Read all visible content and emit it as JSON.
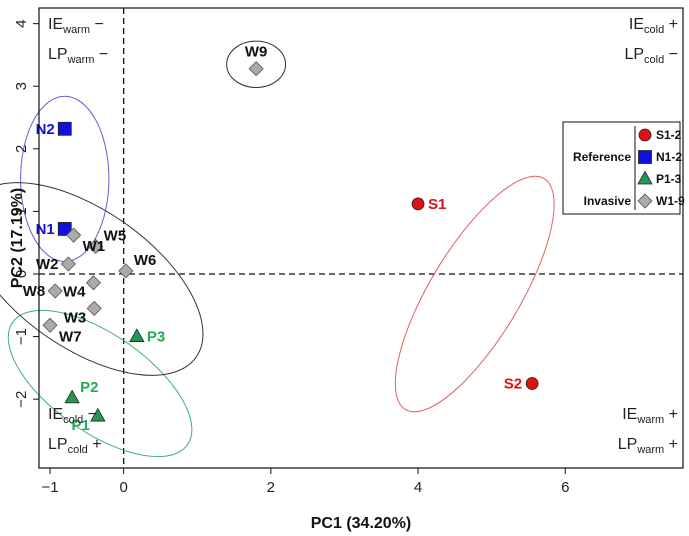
{
  "chart_data": {
    "type": "scatter",
    "xlabel": "PC1 (34.20%)",
    "ylabel": "PC2 (17.19%)",
    "xlim": [
      -1.15,
      7.6
    ],
    "ylim": [
      -3.1,
      4.25
    ],
    "x_ticks": [
      -1,
      0,
      2,
      4,
      6
    ],
    "y_ticks": [
      -2,
      -1,
      0,
      1,
      2,
      3,
      4
    ],
    "x_tick_labels": [
      "−1",
      "0",
      "2",
      "4",
      "6"
    ],
    "y_tick_labels": [
      "−2",
      "−1",
      "0",
      "1",
      "2",
      "3",
      "4"
    ],
    "reference_lines": {
      "x": 0,
      "y": 0,
      "style": "dashed"
    },
    "points": [
      {
        "label": "S1",
        "x": 4.0,
        "y": 1.12,
        "group": "S",
        "label_pos": "right"
      },
      {
        "label": "S2",
        "x": 5.55,
        "y": -1.75,
        "group": "S",
        "label_pos": "left"
      },
      {
        "label": "N1",
        "x": -0.8,
        "y": 0.72,
        "group": "N",
        "label_pos": "left"
      },
      {
        "label": "N2",
        "x": -0.8,
        "y": 2.32,
        "group": "N",
        "label_pos": "left"
      },
      {
        "label": "P1",
        "x": -0.35,
        "y": -2.27,
        "group": "P",
        "label_pos": "left-below"
      },
      {
        "label": "P2",
        "x": -0.7,
        "y": -1.98,
        "group": "P",
        "label_pos": "right-above"
      },
      {
        "label": "P3",
        "x": 0.18,
        "y": -1.0,
        "group": "P",
        "label_pos": "right"
      },
      {
        "label": "W1",
        "x": -0.68,
        "y": 0.62,
        "group": "W",
        "label_pos": "right-below"
      },
      {
        "label": "W2",
        "x": -0.75,
        "y": 0.16,
        "group": "W",
        "label_pos": "left"
      },
      {
        "label": "W3",
        "x": -0.4,
        "y": -0.55,
        "group": "W",
        "label_pos": "left-below"
      },
      {
        "label": "W4",
        "x": -0.41,
        "y": -0.14,
        "group": "W",
        "label_pos": "left-below"
      },
      {
        "label": "W5",
        "x": -0.38,
        "y": 0.44,
        "group": "W",
        "label_pos": "right-above"
      },
      {
        "label": "W6",
        "x": 0.03,
        "y": 0.05,
        "group": "W",
        "label_pos": "right-above"
      },
      {
        "label": "W7",
        "x": -1.0,
        "y": -0.82,
        "group": "W",
        "label_pos": "right-below"
      },
      {
        "label": "W8",
        "x": -0.93,
        "y": -0.27,
        "group": "W",
        "label_pos": "left"
      },
      {
        "label": "W9",
        "x": 1.8,
        "y": 3.28,
        "group": "W",
        "label_pos": "above"
      }
    ],
    "groups": {
      "S": {
        "shape": "circle",
        "color": "#dd1111",
        "label_color": "#dd1111"
      },
      "N": {
        "shape": "square",
        "color": "#1111dd",
        "label_color": "#1111dd"
      },
      "P": {
        "shape": "triangle",
        "color": "#229955",
        "label_color": "#22aa55"
      },
      "W": {
        "shape": "diamond",
        "color": "#aaaaaa",
        "label_color": "#111111"
      }
    },
    "ellipses": [
      {
        "group": "S",
        "cx": 4.77,
        "cy": -0.32,
        "rx": 1.83,
        "ry": 0.72,
        "angle_deg": -59,
        "color": "#e06060"
      },
      {
        "group": "N",
        "cx": -0.8,
        "cy": 1.52,
        "rx": 0.6,
        "ry": 1.32,
        "angle_deg": 0,
        "color": "#6060d8"
      },
      {
        "group": "P",
        "cx": -0.32,
        "cy": -1.75,
        "rx": 1.45,
        "ry": 0.78,
        "angle_deg": 35,
        "color": "#40b070"
      },
      {
        "group": "W",
        "cx": -0.53,
        "cy": -0.08,
        "rx": 1.85,
        "ry": 1.1,
        "angle_deg": 35,
        "color": "#333333"
      },
      {
        "group": "W9",
        "cx": 1.8,
        "cy": 3.35,
        "rx": 0.4,
        "ry": 0.37,
        "angle_deg": 0,
        "color": "#333333"
      }
    ],
    "corners": {
      "top_left": [
        {
          "main": "IE",
          "sub": "warm",
          "sign": "−"
        },
        {
          "main": "LP",
          "sub": "warm",
          "sign": "−"
        }
      ],
      "top_right": [
        {
          "main": "IE",
          "sub": "cold",
          "sign": "+"
        },
        {
          "main": "LP",
          "sub": "cold",
          "sign": "−"
        }
      ],
      "bottom_left": [
        {
          "main": "IE",
          "sub": "cold",
          "sign": "−"
        },
        {
          "main": "LP",
          "sub": "cold",
          "sign": "+"
        }
      ],
      "bottom_right": [
        {
          "main": "IE",
          "sub": "warm",
          "sign": "+"
        },
        {
          "main": "LP",
          "sub": "warm",
          "sign": "+"
        }
      ]
    },
    "legend": {
      "position": "right",
      "groups": [
        {
          "title": "Reference",
          "entries": [
            {
              "label": "S1-2",
              "shape": "circle",
              "color": "#dd1111"
            },
            {
              "label": "N1-2",
              "shape": "square",
              "color": "#1111dd"
            },
            {
              "label": "P1-3",
              "shape": "triangle",
              "color": "#229955"
            }
          ]
        },
        {
          "title": "Invasive",
          "entries": [
            {
              "label": "W1-9",
              "shape": "diamond",
              "color": "#aaaaaa"
            }
          ]
        }
      ]
    }
  }
}
